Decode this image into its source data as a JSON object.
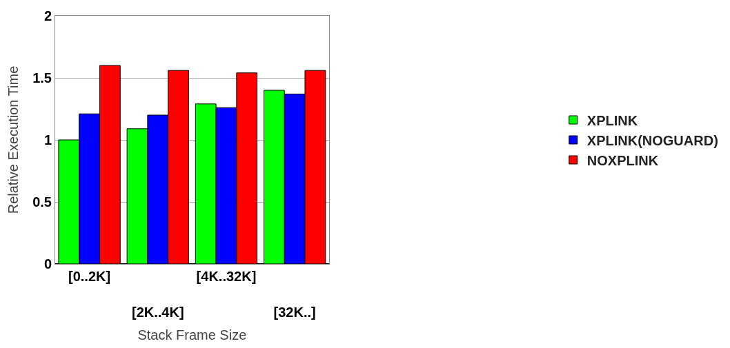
{
  "chart_data": {
    "type": "bar",
    "xlabel": "Stack Frame Size",
    "ylabel": "Relative Execution Time",
    "categories": [
      "[0..2K]",
      "[2K..4K]",
      "[4K..32K]",
      "[32K..]"
    ],
    "series": [
      {
        "name": "XPLINK",
        "color": "#00ff00",
        "values": [
          1.0,
          1.09,
          1.29,
          1.4
        ]
      },
      {
        "name": "XPLINK(NOGUARD)",
        "color": "#0000ff",
        "values": [
          1.21,
          1.2,
          1.26,
          1.37
        ]
      },
      {
        "name": "NOXPLINK",
        "color": "#ff0000",
        "values": [
          1.6,
          1.56,
          1.54,
          1.56
        ]
      }
    ],
    "ylim": [
      0,
      2
    ],
    "yticks": [
      0,
      0.5,
      1,
      1.5,
      2
    ],
    "grid": "y",
    "legend": "right"
  }
}
